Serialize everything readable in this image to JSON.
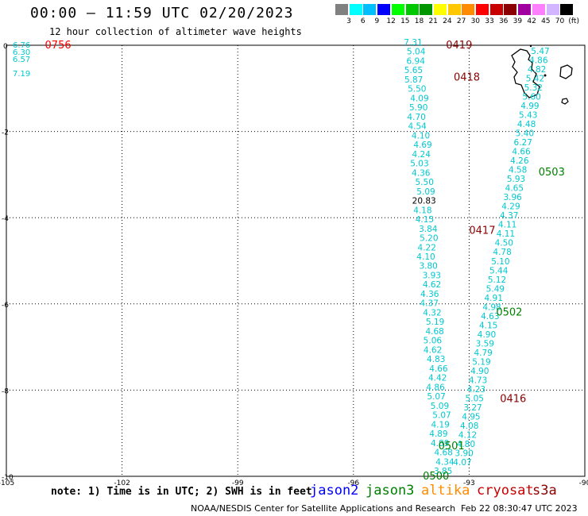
{
  "header": {
    "title": "00:00 – 11:59 UTC 02/20/2023",
    "subtitle": "12 hour collection of altimeter wave heights"
  },
  "color_scale": {
    "colors": [
      "#808080",
      "#00ffff",
      "#00bfff",
      "#0000ff",
      "#00ff00",
      "#00c800",
      "#009600",
      "#ffff00",
      "#ffc800",
      "#ff8c00",
      "#ff0000",
      "#c80000",
      "#8b0000",
      "#a000a0",
      "#ff80ff",
      "#d2b4ff",
      "#000000"
    ],
    "labels": [
      "3",
      "6",
      "9",
      "12",
      "15",
      "18",
      "21",
      "24",
      "27",
      "30",
      "33",
      "36",
      "39",
      "42",
      "45",
      "70",
      "(ft)"
    ]
  },
  "map": {
    "lon_ticks": [
      "-105",
      "-102",
      "-99",
      "-96",
      "-93",
      "-90"
    ],
    "lat_ticks": [
      "0",
      "-2",
      "-4",
      "-6",
      "-8",
      "-10"
    ],
    "grid_color": "#000000"
  },
  "passes": [
    {
      "label": "0756",
      "color": "#ff0000",
      "lon": -104.0,
      "lat": 0.0
    },
    {
      "label": "0419",
      "color": "#8b0000",
      "lon": -93.6,
      "lat": 0.0
    },
    {
      "label": "0418",
      "color": "#8b0000",
      "lon": -93.4,
      "lat": -0.75
    },
    {
      "label": "0503",
      "color": "#008000",
      "lon": -91.2,
      "lat": -2.95
    },
    {
      "label": "0417",
      "color": "#8b0000",
      "lon": -93.0,
      "lat": -4.3
    },
    {
      "label": "0502",
      "color": "#008000",
      "lon": -92.3,
      "lat": -6.2
    },
    {
      "label": "0416",
      "color": "#8b0000",
      "lon": -92.2,
      "lat": -8.2
    },
    {
      "label": "0501",
      "color": "#008000",
      "lon": -93.8,
      "lat": -9.3
    },
    {
      "label": "0500",
      "color": "#008000",
      "lon": -94.2,
      "lat": -10.0
    }
  ],
  "track_a_values": [
    "7.31",
    "5.04",
    "6.94",
    "5.65",
    "5.87",
    "5.50",
    "4.09",
    "5.90",
    "4.70",
    "4.54",
    "4.10",
    "4.69",
    "4.24",
    "5.03",
    "4.36",
    "5.50",
    "5.09",
    "20.83",
    "4.18",
    "4.15",
    "3.84",
    "5.20",
    "4.22",
    "4.10",
    "3.80",
    "3.93",
    "4.62",
    "4.36",
    "4.37",
    "4.32",
    "5.19",
    "4.68",
    "5.06",
    "4.62",
    "4.83",
    "4.66",
    "4.42",
    "4.86",
    "5.07",
    "5.09",
    "5.07",
    "4.19",
    "4.89",
    "4.89",
    "4.68",
    "4.34",
    "3.85"
  ],
  "track_b_values": [
    "5.47",
    "4.86",
    "4.82",
    "5.42",
    "5.32",
    "5.60",
    "4.99",
    "5.43",
    "4.48",
    "5.40",
    "6.27",
    "4.66",
    "4.26",
    "4.58",
    "5.93",
    "4.65",
    "3.96",
    "4.29",
    "4.37",
    "4.11",
    "4.11",
    "4.50",
    "4.78",
    "5.10",
    "5.44",
    "5.12",
    "5.49",
    "4.91",
    "4.98",
    "4.63",
    "4.15",
    "4.90",
    "3.59",
    "4.79",
    "5.19",
    "4.90",
    "4.73",
    "4.23",
    "5.05",
    "3.27",
    "4.95",
    "4.08",
    "4.12",
    "4.80",
    "3.90",
    "4.07"
  ],
  "west_values": [
    "6.76",
    "6.30",
    "6.57",
    "7.19"
  ],
  "legend": {
    "note": "note:  1) Time is in UTC;  2) SWH is in feet",
    "items": [
      {
        "label": "jason2",
        "color": "#0000ff"
      },
      {
        "label": "jason3",
        "color": "#008000"
      },
      {
        "label": "altika",
        "color": "#ff8c00"
      },
      {
        "label": "cryosat",
        "color": "#c80000"
      },
      {
        "label": "s3a",
        "color": "#8b0000"
      }
    ]
  },
  "footer": {
    "credit": "NOAA/NESDIS Center for Satellite Applications and Research",
    "stamp": "Feb 22 08:30:47 UTC 2023"
  }
}
